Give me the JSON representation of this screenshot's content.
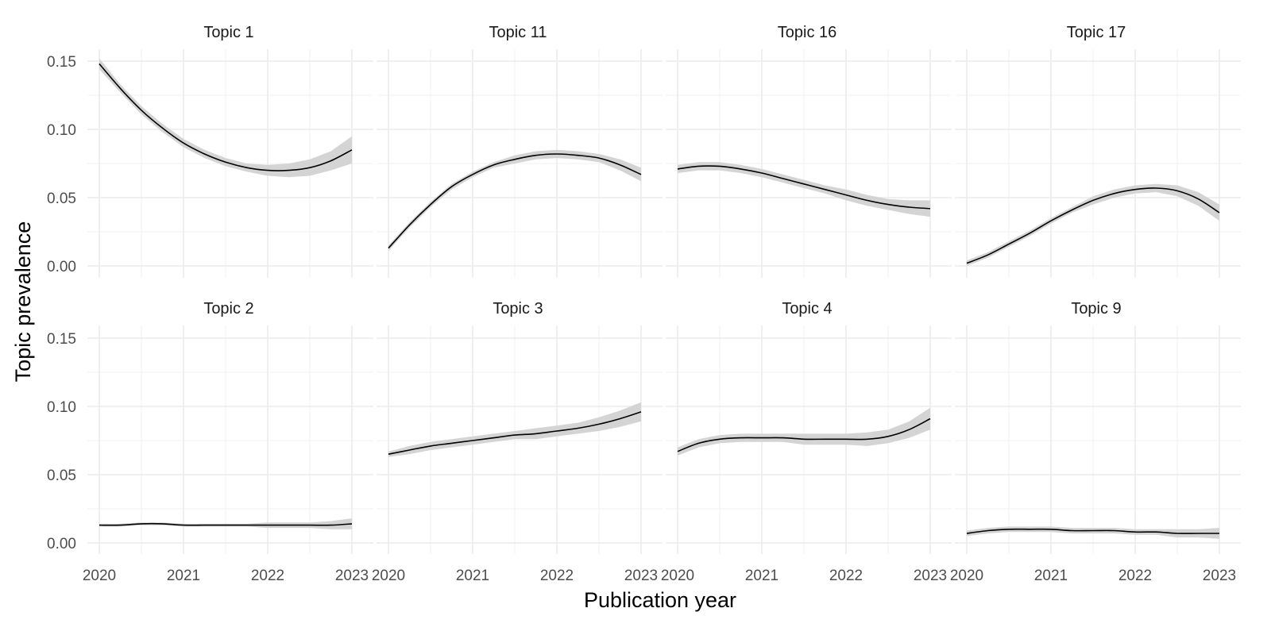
{
  "chart_data": {
    "type": "line",
    "layout": "facet-grid 2 rows x 4 columns, shared axes",
    "xlabel": "Publication year",
    "ylabel": "Topic prevalence",
    "xlim": [
      2020,
      2023
    ],
    "ylim": [
      0,
      0.15
    ],
    "x_ticks": [
      "2020",
      "2021",
      "2022",
      "2023"
    ],
    "y_ticks": [
      "0.00",
      "0.05",
      "0.10",
      "0.15"
    ],
    "grid": true,
    "confidence_band": true,
    "x": [
      2020,
      2020.25,
      2020.5,
      2020.75,
      2021,
      2021.25,
      2021.5,
      2021.75,
      2022,
      2022.25,
      2022.5,
      2022.75,
      2023
    ],
    "panels": [
      {
        "title": "Topic 1",
        "values": [
          0.148,
          0.13,
          0.114,
          0.101,
          0.09,
          0.082,
          0.076,
          0.072,
          0.07,
          0.07,
          0.072,
          0.077,
          0.085
        ],
        "band": [
          0.004,
          0.003,
          0.003,
          0.003,
          0.003,
          0.003,
          0.003,
          0.003,
          0.004,
          0.005,
          0.006,
          0.007,
          0.01
        ]
      },
      {
        "title": "Topic 11",
        "values": [
          0.013,
          0.03,
          0.045,
          0.058,
          0.067,
          0.074,
          0.078,
          0.081,
          0.082,
          0.081,
          0.079,
          0.074,
          0.067
        ],
        "band": [
          0.002,
          0.002,
          0.002,
          0.002,
          0.002,
          0.002,
          0.003,
          0.003,
          0.003,
          0.003,
          0.003,
          0.004,
          0.005
        ]
      },
      {
        "title": "Topic 16",
        "values": [
          0.071,
          0.073,
          0.073,
          0.071,
          0.068,
          0.064,
          0.06,
          0.056,
          0.052,
          0.048,
          0.045,
          0.043,
          0.042
        ],
        "band": [
          0.003,
          0.003,
          0.003,
          0.003,
          0.003,
          0.003,
          0.003,
          0.003,
          0.004,
          0.004,
          0.004,
          0.005,
          0.006
        ]
      },
      {
        "title": "Topic 17",
        "values": [
          0.002,
          0.008,
          0.016,
          0.024,
          0.033,
          0.041,
          0.048,
          0.053,
          0.056,
          0.057,
          0.055,
          0.049,
          0.039
        ],
        "band": [
          0.002,
          0.002,
          0.002,
          0.002,
          0.002,
          0.002,
          0.003,
          0.003,
          0.003,
          0.003,
          0.004,
          0.005,
          0.006
        ]
      },
      {
        "title": "Topic 2",
        "values": [
          0.013,
          0.013,
          0.014,
          0.014,
          0.013,
          0.013,
          0.013,
          0.013,
          0.013,
          0.013,
          0.013,
          0.013,
          0.014
        ],
        "band": [
          0.001,
          0.001,
          0.001,
          0.001,
          0.001,
          0.001,
          0.001,
          0.001,
          0.002,
          0.002,
          0.002,
          0.003,
          0.004
        ]
      },
      {
        "title": "Topic 3",
        "values": [
          0.065,
          0.068,
          0.071,
          0.073,
          0.075,
          0.077,
          0.079,
          0.08,
          0.082,
          0.084,
          0.087,
          0.091,
          0.096
        ],
        "band": [
          0.002,
          0.003,
          0.003,
          0.003,
          0.003,
          0.003,
          0.003,
          0.004,
          0.004,
          0.004,
          0.005,
          0.006,
          0.007
        ]
      },
      {
        "title": "Topic 4",
        "values": [
          0.067,
          0.073,
          0.076,
          0.077,
          0.077,
          0.077,
          0.076,
          0.076,
          0.076,
          0.076,
          0.078,
          0.083,
          0.091
        ],
        "band": [
          0.003,
          0.003,
          0.003,
          0.003,
          0.003,
          0.003,
          0.004,
          0.004,
          0.004,
          0.005,
          0.005,
          0.006,
          0.008
        ]
      },
      {
        "title": "Topic 9",
        "values": [
          0.007,
          0.009,
          0.01,
          0.01,
          0.01,
          0.009,
          0.009,
          0.009,
          0.008,
          0.008,
          0.007,
          0.007,
          0.007
        ],
        "band": [
          0.002,
          0.002,
          0.002,
          0.002,
          0.002,
          0.002,
          0.002,
          0.002,
          0.002,
          0.002,
          0.003,
          0.003,
          0.004
        ]
      }
    ]
  }
}
